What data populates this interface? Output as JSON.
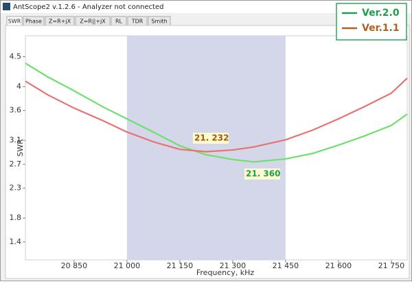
{
  "window": {
    "title": "AntScope2 v.1.2.6 - Analyzer not connected",
    "tabs": [
      "SWR",
      "Phase",
      "Z=R+jX",
      "Z=R||+jX",
      "RL",
      "TDR",
      "Smith"
    ]
  },
  "chart_data": {
    "type": "line",
    "x_label": "Frequency, kHz",
    "y_label": "SWR",
    "x": [
      20712,
      20776,
      20850,
      20932,
      21000,
      21078,
      21150,
      21224,
      21300,
      21360,
      21450,
      21526,
      21600,
      21672,
      21750,
      21795
    ],
    "series": [
      {
        "name": "Ver.2.0",
        "color": "#6de06d",
        "values": [
          4.39,
          4.16,
          3.93,
          3.66,
          3.46,
          3.23,
          3.01,
          2.86,
          2.78,
          2.74,
          2.79,
          2.88,
          3.02,
          3.17,
          3.35,
          3.54
        ]
      },
      {
        "name": "Ver.1.1",
        "color": "#e87272",
        "values": [
          4.09,
          3.86,
          3.64,
          3.43,
          3.24,
          3.07,
          2.95,
          2.91,
          2.94,
          2.99,
          3.11,
          3.27,
          3.46,
          3.66,
          3.89,
          4.14
        ]
      }
    ],
    "highlight_range": [
      21000,
      21450
    ],
    "highlight_color": "#d4d6ea",
    "annotations": [
      "21. 232",
      "21. 360"
    ],
    "xlim": [
      20712,
      21795
    ],
    "xticks": [
      {
        "value": 20850,
        "label": "20 850"
      },
      {
        "value": 21000,
        "label": "21 000"
      },
      {
        "value": 21150,
        "label": "21 150"
      },
      {
        "value": 21300,
        "label": "21 300"
      },
      {
        "value": 21450,
        "label": "21 450"
      },
      {
        "value": 21600,
        "label": "21 600"
      },
      {
        "value": 21750,
        "label": "21 750"
      }
    ],
    "ylim": [
      1.1,
      4.85
    ],
    "yticks": [
      1.4,
      1.8,
      2.3,
      2.7,
      3.1,
      3.6,
      4.0,
      4.5
    ]
  }
}
